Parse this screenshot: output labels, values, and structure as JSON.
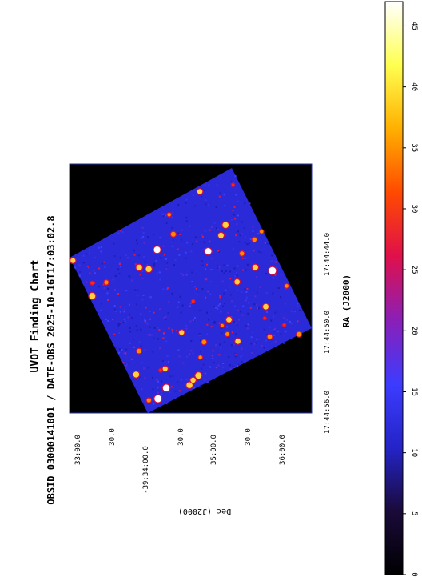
{
  "chart_data": {
    "type": "heatmap",
    "title": "UVOT Finding Chart",
    "subtitle": "OBSID 03000141001 / DATE-OBS 2025-10-16T17:03:02.8",
    "xlabel": "RA (J2000)",
    "ylabel": "Dec (J2000)",
    "ra_ticks": [
      "17:44:56.0",
      "17:44:50.0",
      "17:44:44.0"
    ],
    "dec_ticks": [
      "33:00.0",
      "30.0",
      "-39:34:00.0",
      "30.0",
      "35:00.0",
      "30.0",
      "36:00.0"
    ],
    "colorbar": {
      "ticks": [
        0,
        5,
        10,
        15,
        20,
        25,
        30,
        35,
        40,
        45
      ],
      "range": [
        0,
        47
      ],
      "colormap": [
        "#000000",
        "#1a0a3a",
        "#2424c8",
        "#3c3cff",
        "#8a1fb8",
        "#e0104a",
        "#ff4a00",
        "#ffb000",
        "#ffff50",
        "#ffffff"
      ]
    },
    "image_background": "#0a0a30",
    "image_field_color": "#2a2ad8",
    "grid": false
  }
}
